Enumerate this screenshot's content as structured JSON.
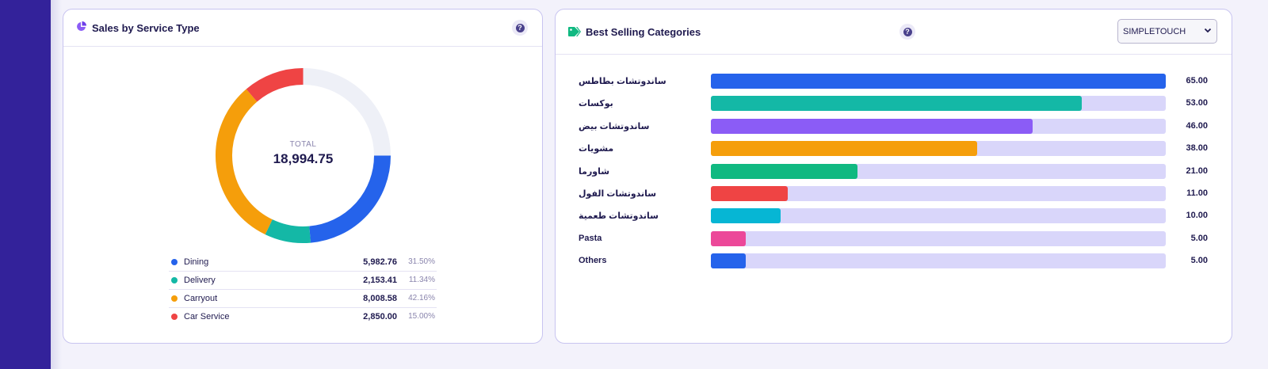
{
  "sales_card": {
    "title": "Sales by Service Type",
    "total_label": "TOTAL",
    "total_value": "18,994.75",
    "segments": [
      {
        "name": "Dining",
        "value": "5,982.76",
        "pct": "31.50%",
        "fraction": 0.315,
        "color": "#2563eb"
      },
      {
        "name": "Delivery",
        "value": "2,153.41",
        "pct": "11.34%",
        "fraction": 0.1134,
        "color": "#14b8a6"
      },
      {
        "name": "Carryout",
        "value": "8,008.58",
        "pct": "42.16%",
        "fraction": 0.4216,
        "color": "#f59e0b"
      },
      {
        "name": "Car Service",
        "value": "2,850.00",
        "pct": "15.00%",
        "fraction": 0.15,
        "color": "#ef4444"
      }
    ]
  },
  "best_card": {
    "title": "Best Selling Categories",
    "select_value": "SIMPLETOUCH",
    "max_value": 65,
    "items": [
      {
        "label": "ساندوتشات بطاطس",
        "value": 65,
        "display": "65.00",
        "color": "#2563eb"
      },
      {
        "label": "بوكسات",
        "value": 53,
        "display": "53.00",
        "color": "#14b8a6"
      },
      {
        "label": "ساندوتشات بيض",
        "value": 46,
        "display": "46.00",
        "color": "#8b5cf6"
      },
      {
        "label": "مشويات",
        "value": 38,
        "display": "38.00",
        "color": "#f59e0b"
      },
      {
        "label": "شاورما",
        "value": 21,
        "display": "21.00",
        "color": "#10b981"
      },
      {
        "label": "ساندوتشات الفول",
        "value": 11,
        "display": "11.00",
        "color": "#ef4444"
      },
      {
        "label": "ساندوتشات طعمية",
        "value": 10,
        "display": "10.00",
        "color": "#06b6d4"
      },
      {
        "label": "Pasta",
        "value": 5,
        "display": "5.00",
        "color": "#ec4899"
      },
      {
        "label": "Others",
        "value": 5,
        "display": "5.00",
        "color": "#2563eb"
      }
    ]
  },
  "colors": {
    "accent": "#33229a",
    "track": "#d9d6fa",
    "donut_empty": "#eef0f7"
  }
}
